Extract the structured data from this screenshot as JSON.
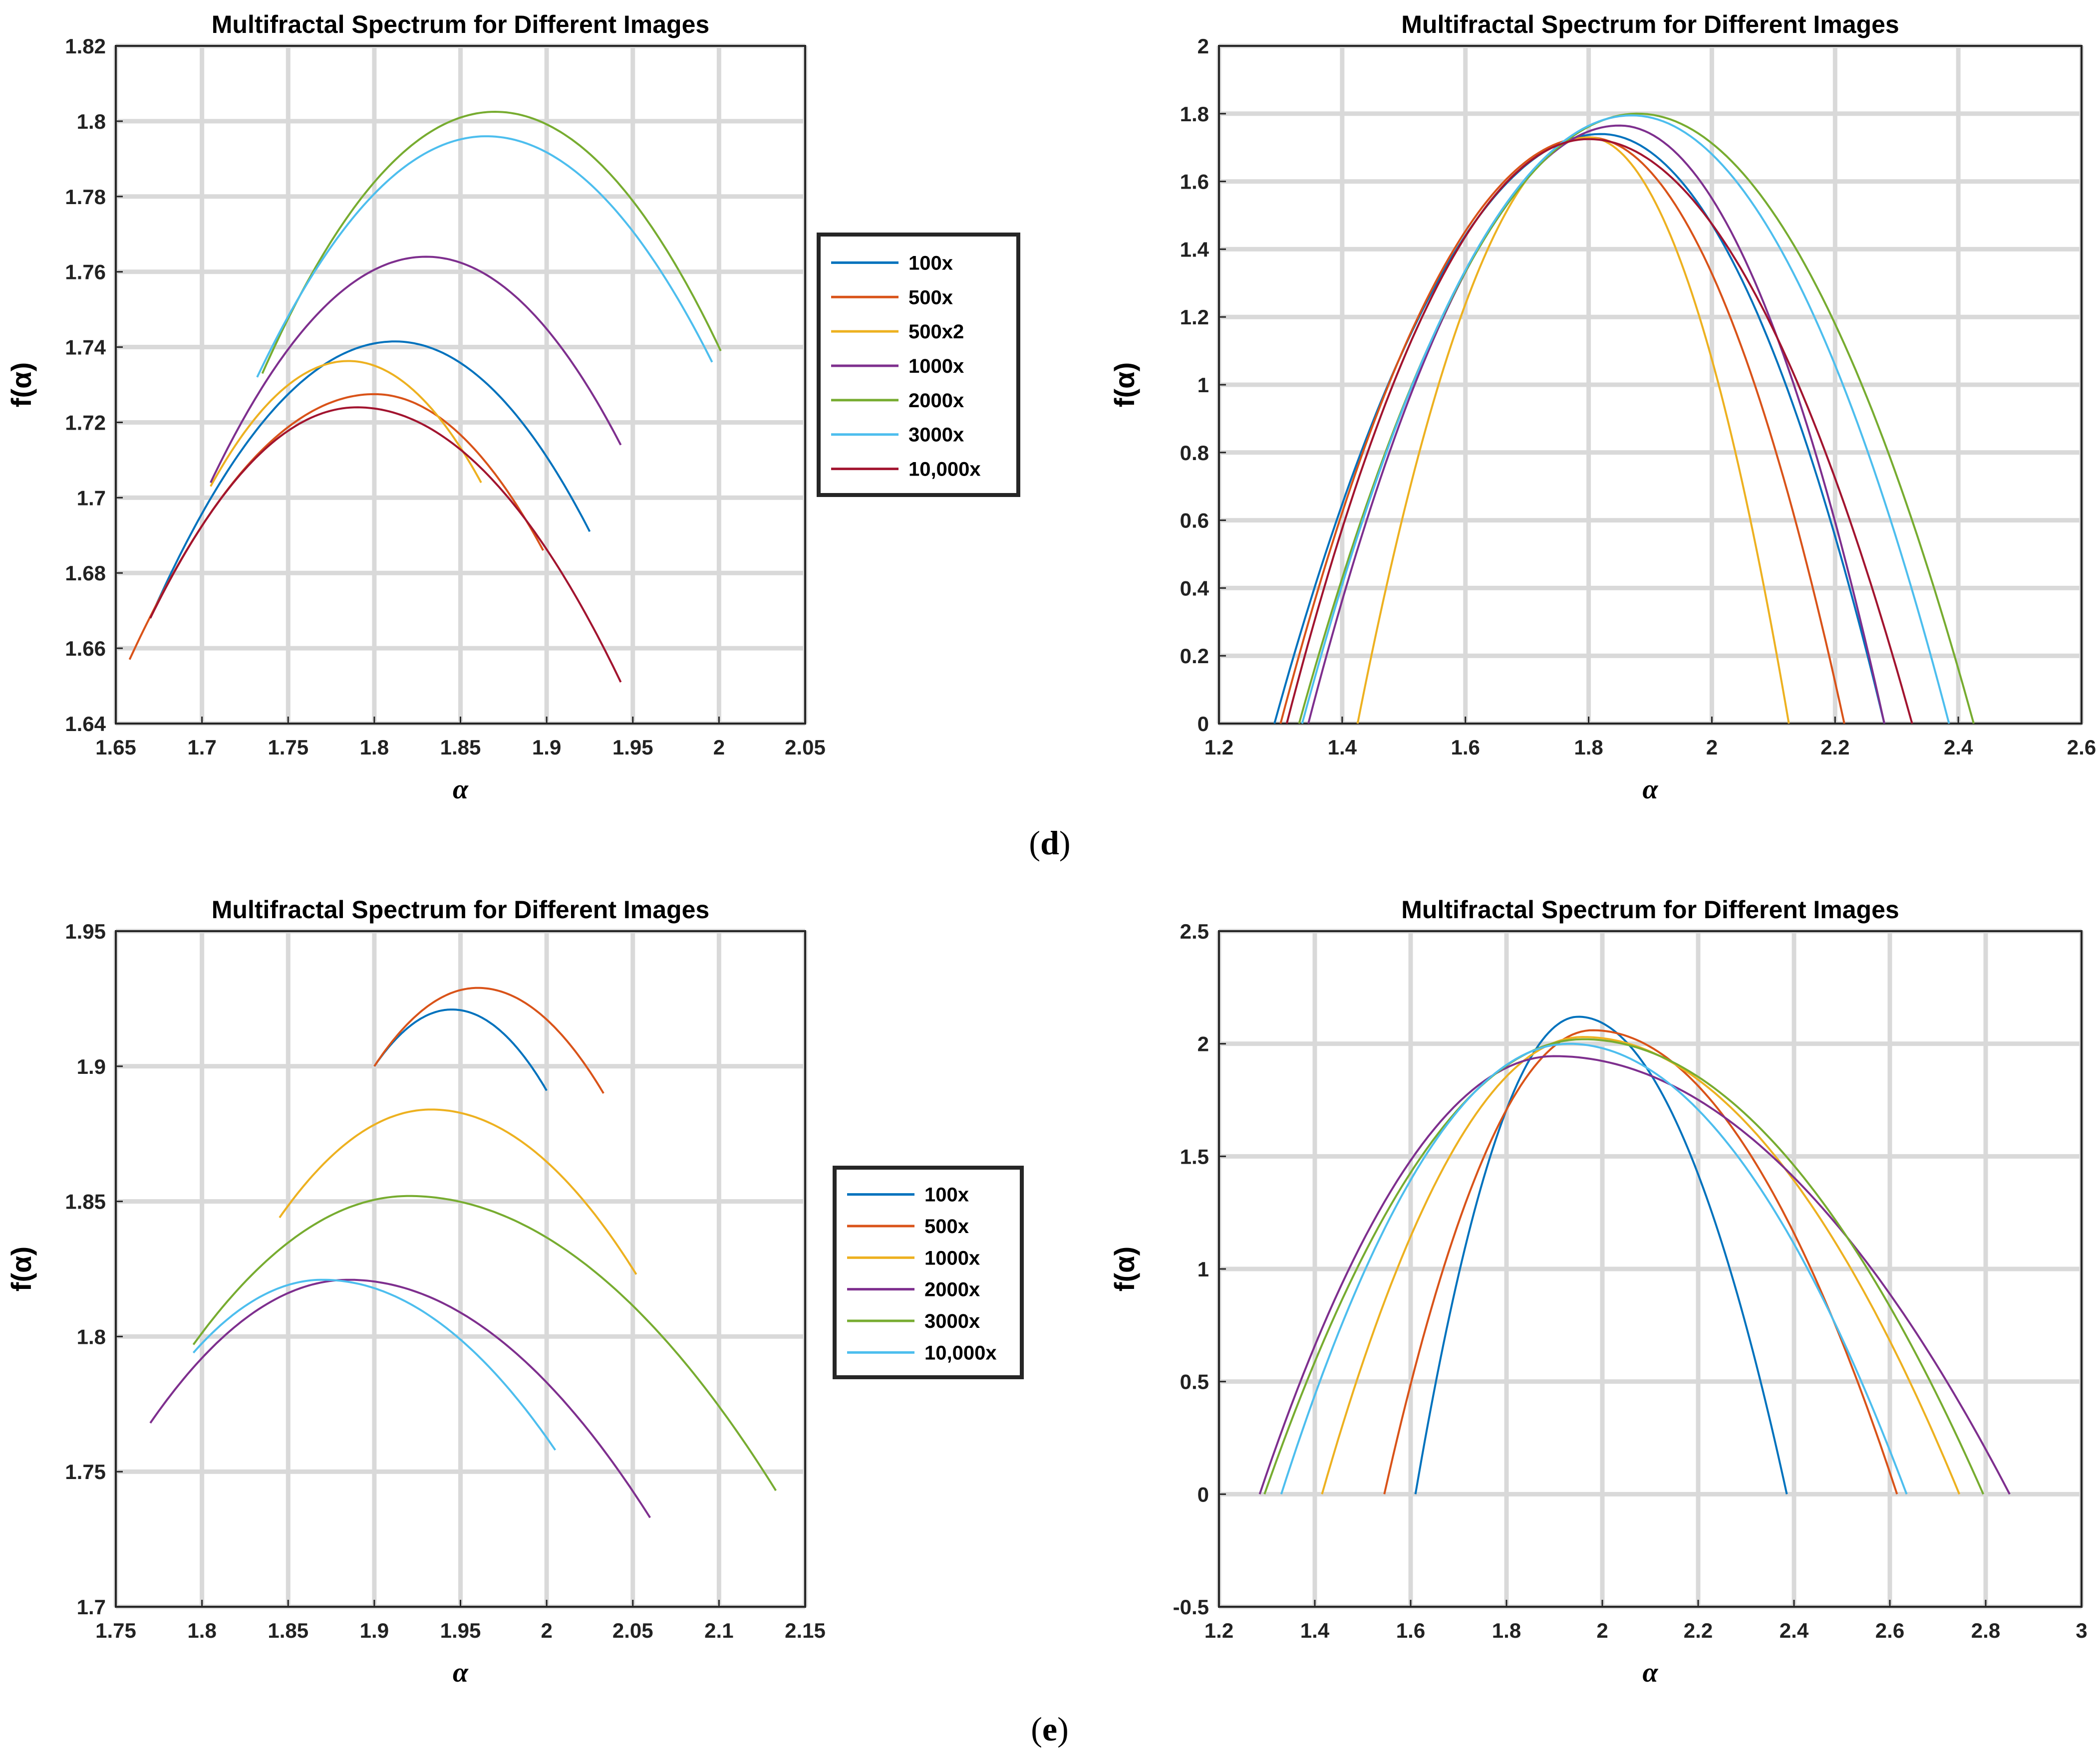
{
  "captions": {
    "d": "d",
    "e": "e"
  },
  "chart_data": [
    {
      "id": "d_left",
      "type": "line",
      "title": "Multifractal Spectrum for Different Images",
      "xlabel": "α",
      "ylabel": "f(α)",
      "xlim": [
        1.65,
        2.05
      ],
      "ylim": [
        1.64,
        1.82
      ],
      "xticks": [
        1.65,
        1.7,
        1.75,
        1.8,
        1.85,
        1.9,
        1.95,
        2,
        2.05
      ],
      "yticks": [
        1.64,
        1.66,
        1.68,
        1.7,
        1.72,
        1.74,
        1.76,
        1.78,
        1.8,
        1.82
      ],
      "grid": true,
      "legend": "outside-right",
      "series": [
        {
          "name": "100x",
          "color": "#0072BD",
          "alpha_range": [
            1.67,
            1.925
          ],
          "peak": [
            1.812,
            1.7415
          ],
          "end_values": [
            1.668,
            1.691
          ]
        },
        {
          "name": "500x",
          "color": "#D95319",
          "alpha_range": [
            1.658,
            1.898
          ],
          "peak": [
            1.8,
            1.7275
          ],
          "end_values": [
            1.657,
            1.686
          ]
        },
        {
          "name": "500x2",
          "color": "#EDB120",
          "alpha_range": [
            1.705,
            1.862
          ],
          "peak": [
            1.785,
            1.7363
          ],
          "end_values": [
            1.703,
            1.704
          ]
        },
        {
          "name": "1000x",
          "color": "#7E2F8E",
          "alpha_range": [
            1.705,
            1.943
          ],
          "peak": [
            1.83,
            1.764
          ],
          "end_values": [
            1.704,
            1.714
          ]
        },
        {
          "name": "2000x",
          "color": "#77AC30",
          "alpha_range": [
            1.735,
            2.001
          ],
          "peak": [
            1.87,
            1.8025
          ],
          "end_values": [
            1.733,
            1.739
          ]
        },
        {
          "name": "3000x",
          "color": "#4DBEEE",
          "alpha_range": [
            1.732,
            1.996
          ],
          "peak": [
            1.865,
            1.796
          ],
          "end_values": [
            1.732,
            1.736
          ]
        },
        {
          "name": "10,000x",
          "color": "#A2142F",
          "alpha_range": [
            1.67,
            1.943
          ],
          "peak": [
            1.79,
            1.724
          ],
          "end_values": [
            1.668,
            1.651
          ]
        }
      ]
    },
    {
      "id": "d_right",
      "type": "line",
      "title": "Multifractal Spectrum for Different Images",
      "xlabel": "α",
      "ylabel": "f(α)",
      "xlim": [
        1.2,
        2.6
      ],
      "ylim": [
        0,
        2
      ],
      "xticks": [
        1.2,
        1.4,
        1.6,
        1.8,
        2,
        2.2,
        2.4,
        2.6
      ],
      "yticks": [
        0,
        0.2,
        0.4,
        0.6,
        0.8,
        1,
        1.2,
        1.4,
        1.6,
        1.8,
        2
      ],
      "grid": true,
      "legend": "none",
      "series": [
        {
          "name": "100x",
          "color": "#0072BD",
          "alpha_range": [
            1.29,
            2.28
          ],
          "peak": [
            1.82,
            1.74
          ],
          "end_values": [
            0,
            0
          ]
        },
        {
          "name": "500x",
          "color": "#D95319",
          "alpha_range": [
            1.3,
            2.215
          ],
          "peak": [
            1.8,
            1.73
          ],
          "end_values": [
            0,
            0
          ]
        },
        {
          "name": "500x2",
          "color": "#EDB120",
          "alpha_range": [
            1.425,
            2.125
          ],
          "peak": [
            1.8,
            1.73
          ],
          "end_values": [
            0,
            0
          ]
        },
        {
          "name": "1000x",
          "color": "#7E2F8E",
          "alpha_range": [
            1.345,
            2.28
          ],
          "peak": [
            1.85,
            1.765
          ],
          "end_values": [
            0,
            0
          ]
        },
        {
          "name": "2000x",
          "color": "#77AC30",
          "alpha_range": [
            1.33,
            2.425
          ],
          "peak": [
            1.88,
            1.8
          ],
          "end_values": [
            0,
            0
          ]
        },
        {
          "name": "3000x",
          "color": "#4DBEEE",
          "alpha_range": [
            1.335,
            2.385
          ],
          "peak": [
            1.87,
            1.795
          ],
          "end_values": [
            0,
            0
          ]
        },
        {
          "name": "10,000x",
          "color": "#A2142F",
          "alpha_range": [
            1.31,
            2.325
          ],
          "peak": [
            1.8,
            1.725
          ],
          "end_values": [
            0,
            0
          ]
        }
      ]
    },
    {
      "id": "e_left",
      "type": "line",
      "title": "Multifractal Spectrum for Different Images",
      "xlabel": "α",
      "ylabel": "f(α)",
      "xlim": [
        1.75,
        2.15
      ],
      "ylim": [
        1.7,
        1.95
      ],
      "xticks": [
        1.75,
        1.8,
        1.85,
        1.9,
        1.95,
        2,
        2.05,
        2.1,
        2.15
      ],
      "yticks": [
        1.7,
        1.75,
        1.8,
        1.85,
        1.9,
        1.95
      ],
      "grid": true,
      "legend": "outside-right",
      "series": [
        {
          "name": "100x",
          "color": "#0072BD",
          "alpha_range": [
            1.9,
            2.0
          ],
          "peak": [
            1.945,
            1.921
          ],
          "end_values": [
            1.9,
            1.891
          ]
        },
        {
          "name": "500x",
          "color": "#D95319",
          "alpha_range": [
            1.9,
            2.033
          ],
          "peak": [
            1.96,
            1.929
          ],
          "end_values": [
            1.9,
            1.89
          ]
        },
        {
          "name": "1000x",
          "color": "#EDB120",
          "alpha_range": [
            1.845,
            2.052
          ],
          "peak": [
            1.933,
            1.884
          ],
          "end_values": [
            1.844,
            1.823
          ]
        },
        {
          "name": "2000x",
          "color": "#7E2F8E",
          "alpha_range": [
            1.77,
            2.06
          ],
          "peak": [
            1.885,
            1.821
          ],
          "end_values": [
            1.768,
            1.733
          ]
        },
        {
          "name": "3000x",
          "color": "#77AC30",
          "alpha_range": [
            1.795,
            2.133
          ],
          "peak": [
            1.92,
            1.852
          ],
          "end_values": [
            1.797,
            1.743
          ]
        },
        {
          "name": "10,000x",
          "color": "#4DBEEE",
          "alpha_range": [
            1.795,
            2.005
          ],
          "peak": [
            1.87,
            1.821
          ],
          "end_values": [
            1.794,
            1.758
          ]
        }
      ]
    },
    {
      "id": "e_right",
      "type": "line",
      "title": "Multifractal Spectrum for Different Images",
      "xlabel": "α",
      "ylabel": "f(α)",
      "xlim": [
        1.2,
        3
      ],
      "ylim": [
        -0.5,
        2.5
      ],
      "xticks": [
        1.2,
        1.4,
        1.6,
        1.8,
        2,
        2.2,
        2.4,
        2.6,
        2.8,
        3
      ],
      "yticks": [
        -0.5,
        0,
        0.5,
        1,
        1.5,
        2,
        2.5
      ],
      "grid": true,
      "legend": "none",
      "series": [
        {
          "name": "100x",
          "color": "#0072BD",
          "alpha_range": [
            1.61,
            2.385
          ],
          "peak": [
            1.95,
            2.12
          ],
          "end_values": [
            0,
            0
          ]
        },
        {
          "name": "500x",
          "color": "#D95319",
          "alpha_range": [
            1.545,
            2.615
          ],
          "peak": [
            1.98,
            2.06
          ],
          "end_values": [
            0,
            0
          ]
        },
        {
          "name": "1000x",
          "color": "#EDB120",
          "alpha_range": [
            1.415,
            2.745
          ],
          "peak": [
            1.96,
            2.03
          ],
          "end_values": [
            0,
            0
          ]
        },
        {
          "name": "2000x",
          "color": "#7E2F8E",
          "alpha_range": [
            1.285,
            2.85
          ],
          "peak": [
            1.9,
            1.945
          ],
          "end_values": [
            0,
            0
          ]
        },
        {
          "name": "3000x",
          "color": "#77AC30",
          "alpha_range": [
            1.295,
            2.795
          ],
          "peak": [
            1.96,
            2.02
          ],
          "end_values": [
            0,
            0
          ]
        },
        {
          "name": "10,000x",
          "color": "#4DBEEE",
          "alpha_range": [
            1.33,
            2.635
          ],
          "peak": [
            1.93,
            2.0
          ],
          "end_values": [
            0,
            0
          ]
        }
      ]
    }
  ]
}
